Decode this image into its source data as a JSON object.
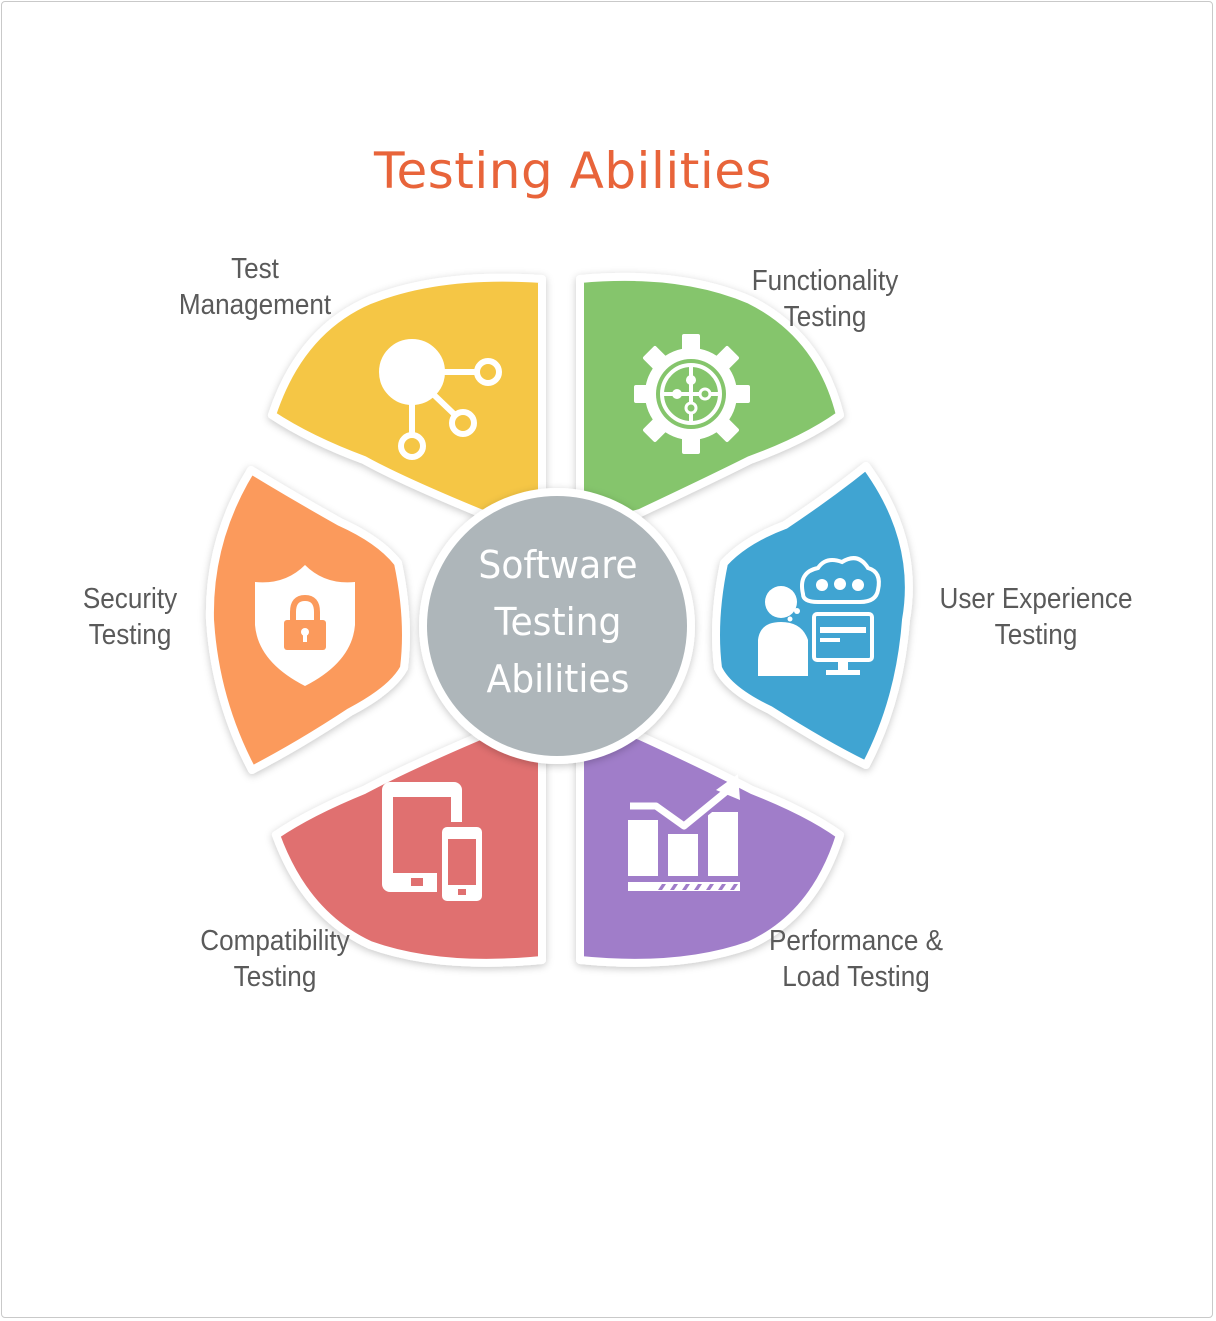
{
  "title": "Testing Abilities",
  "center": {
    "line1": "Software",
    "line2": "Testing",
    "line3": "Abilities",
    "color": "#AEB6BA"
  },
  "segments": [
    {
      "id": "test-management",
      "line1": "Test",
      "line2": "Management",
      "color": "#F5C644",
      "icon": "network-nodes-icon"
    },
    {
      "id": "functionality-testing",
      "line1": "Functionality",
      "line2": "Testing",
      "color": "#85C56C",
      "icon": "gear-puzzle-icon"
    },
    {
      "id": "user-experience-testing",
      "line1": "User Experience",
      "line2": "Testing",
      "color": "#40A4D2",
      "icon": "user-computer-icon"
    },
    {
      "id": "performance-load-testing",
      "line1": "Performance &",
      "line2": "Load Testing",
      "color": "#A07DC9",
      "icon": "growth-chart-icon"
    },
    {
      "id": "compatibility-testing",
      "line1": "Compatibility",
      "line2": "Testing",
      "color": "#E07070",
      "icon": "tablet-phone-icon"
    },
    {
      "id": "security-testing",
      "line1": "Security",
      "line2": "Testing",
      "color": "#FB9A5C",
      "icon": "shield-lock-icon"
    }
  ]
}
